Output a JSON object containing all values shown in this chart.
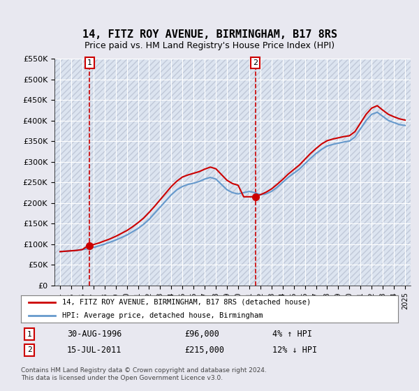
{
  "title": "14, FITZ ROY AVENUE, BIRMINGHAM, B17 8RS",
  "subtitle": "Price paid vs. HM Land Registry's House Price Index (HPI)",
  "legend_line1": "14, FITZ ROY AVENUE, BIRMINGHAM, B17 8RS (detached house)",
  "legend_line2": "HPI: Average price, detached house, Birmingham",
  "table_row1": [
    "1",
    "30-AUG-1996",
    "£96,000",
    "4% ↑ HPI"
  ],
  "table_row2": [
    "2",
    "15-JUL-2011",
    "£215,000",
    "12% ↓ HPI"
  ],
  "footnote": "Contains HM Land Registry data © Crown copyright and database right 2024.\nThis data is licensed under the Open Government Licence v3.0.",
  "ylim": [
    0,
    550000
  ],
  "yticks": [
    0,
    50000,
    100000,
    150000,
    200000,
    250000,
    300000,
    350000,
    400000,
    450000,
    500000,
    550000
  ],
  "ytick_labels": [
    "£0",
    "£50K",
    "£100K",
    "£150K",
    "£200K",
    "£250K",
    "£300K",
    "£350K",
    "£400K",
    "£450K",
    "£500K",
    "£550K"
  ],
  "sale1_x": 1996.66,
  "sale1_y": 96000,
  "sale1_label": "1",
  "sale2_x": 2011.54,
  "sale2_y": 215000,
  "sale2_label": "2",
  "red_color": "#cc0000",
  "blue_color": "#6699cc",
  "bg_color": "#e8e8f0",
  "plot_bg": "#dce4f0",
  "grid_color": "#ffffff",
  "hpi_years": [
    1994,
    1994.5,
    1995,
    1995.5,
    1996,
    1996.5,
    1997,
    1997.5,
    1998,
    1998.5,
    1999,
    1999.5,
    2000,
    2000.5,
    2001,
    2001.5,
    2002,
    2002.5,
    2003,
    2003.5,
    2004,
    2004.5,
    2005,
    2005.5,
    2006,
    2006.5,
    2007,
    2007.5,
    2008,
    2008.5,
    2009,
    2009.5,
    2010,
    2010.5,
    2011,
    2011.5,
    2012,
    2012.5,
    2013,
    2013.5,
    2014,
    2014.5,
    2015,
    2015.5,
    2016,
    2016.5,
    2017,
    2017.5,
    2018,
    2018.5,
    2019,
    2019.5,
    2020,
    2020.5,
    2021,
    2021.5,
    2022,
    2022.5,
    2023,
    2023.5,
    2024,
    2024.5,
    2025
  ],
  "hpi_values": [
    82000,
    83000,
    84000,
    85000,
    87000,
    89000,
    92000,
    96000,
    100000,
    105000,
    110000,
    116000,
    122000,
    130000,
    138000,
    148000,
    160000,
    175000,
    190000,
    205000,
    220000,
    232000,
    240000,
    245000,
    248000,
    252000,
    258000,
    262000,
    258000,
    245000,
    232000,
    225000,
    222000,
    225000,
    228000,
    225000,
    220000,
    222000,
    228000,
    238000,
    250000,
    262000,
    272000,
    282000,
    295000,
    308000,
    320000,
    330000,
    338000,
    342000,
    345000,
    348000,
    350000,
    360000,
    380000,
    400000,
    415000,
    420000,
    410000,
    400000,
    395000,
    390000,
    388000
  ],
  "red_years": [
    1994,
    1994.5,
    1995,
    1995.5,
    1996,
    1996.5,
    1997,
    1997.5,
    1998,
    1998.5,
    1999,
    1999.5,
    2000,
    2000.5,
    2001,
    2001.5,
    2002,
    2002.5,
    2003,
    2003.5,
    2004,
    2004.5,
    2005,
    2005.5,
    2006,
    2006.5,
    2007,
    2007.5,
    2008,
    2008.5,
    2009,
    2009.5,
    2010,
    2010.5,
    2011,
    2011.5,
    2012,
    2012.5,
    2013,
    2013.5,
    2014,
    2014.5,
    2015,
    2015.5,
    2016,
    2016.5,
    2017,
    2017.5,
    2018,
    2018.5,
    2019,
    2019.5,
    2020,
    2020.5,
    2021,
    2021.5,
    2022,
    2022.5,
    2023,
    2023.5,
    2024,
    2024.5,
    2025
  ],
  "red_values": [
    82000,
    83000,
    84000,
    85000,
    87000,
    96000,
    99000,
    103000,
    108000,
    113000,
    119000,
    126000,
    133000,
    142000,
    152000,
    163000,
    177000,
    192000,
    208000,
    224000,
    240000,
    253000,
    263000,
    268000,
    272000,
    276000,
    282000,
    287000,
    283000,
    269000,
    255000,
    247000,
    243000,
    215000,
    215000,
    215000,
    220000,
    226000,
    234000,
    245000,
    257000,
    270000,
    281000,
    292000,
    306000,
    320000,
    332000,
    343000,
    351000,
    355000,
    358000,
    361000,
    363000,
    373000,
    394000,
    415000,
    430000,
    436000,
    425000,
    415000,
    409000,
    404000,
    401000
  ],
  "xlim": [
    1993.5,
    2025.5
  ],
  "xticks": [
    1994,
    1995,
    1996,
    1997,
    1998,
    1999,
    2000,
    2001,
    2002,
    2003,
    2004,
    2005,
    2006,
    2007,
    2008,
    2009,
    2010,
    2011,
    2012,
    2013,
    2014,
    2015,
    2016,
    2017,
    2018,
    2019,
    2020,
    2021,
    2022,
    2023,
    2024,
    2025
  ]
}
